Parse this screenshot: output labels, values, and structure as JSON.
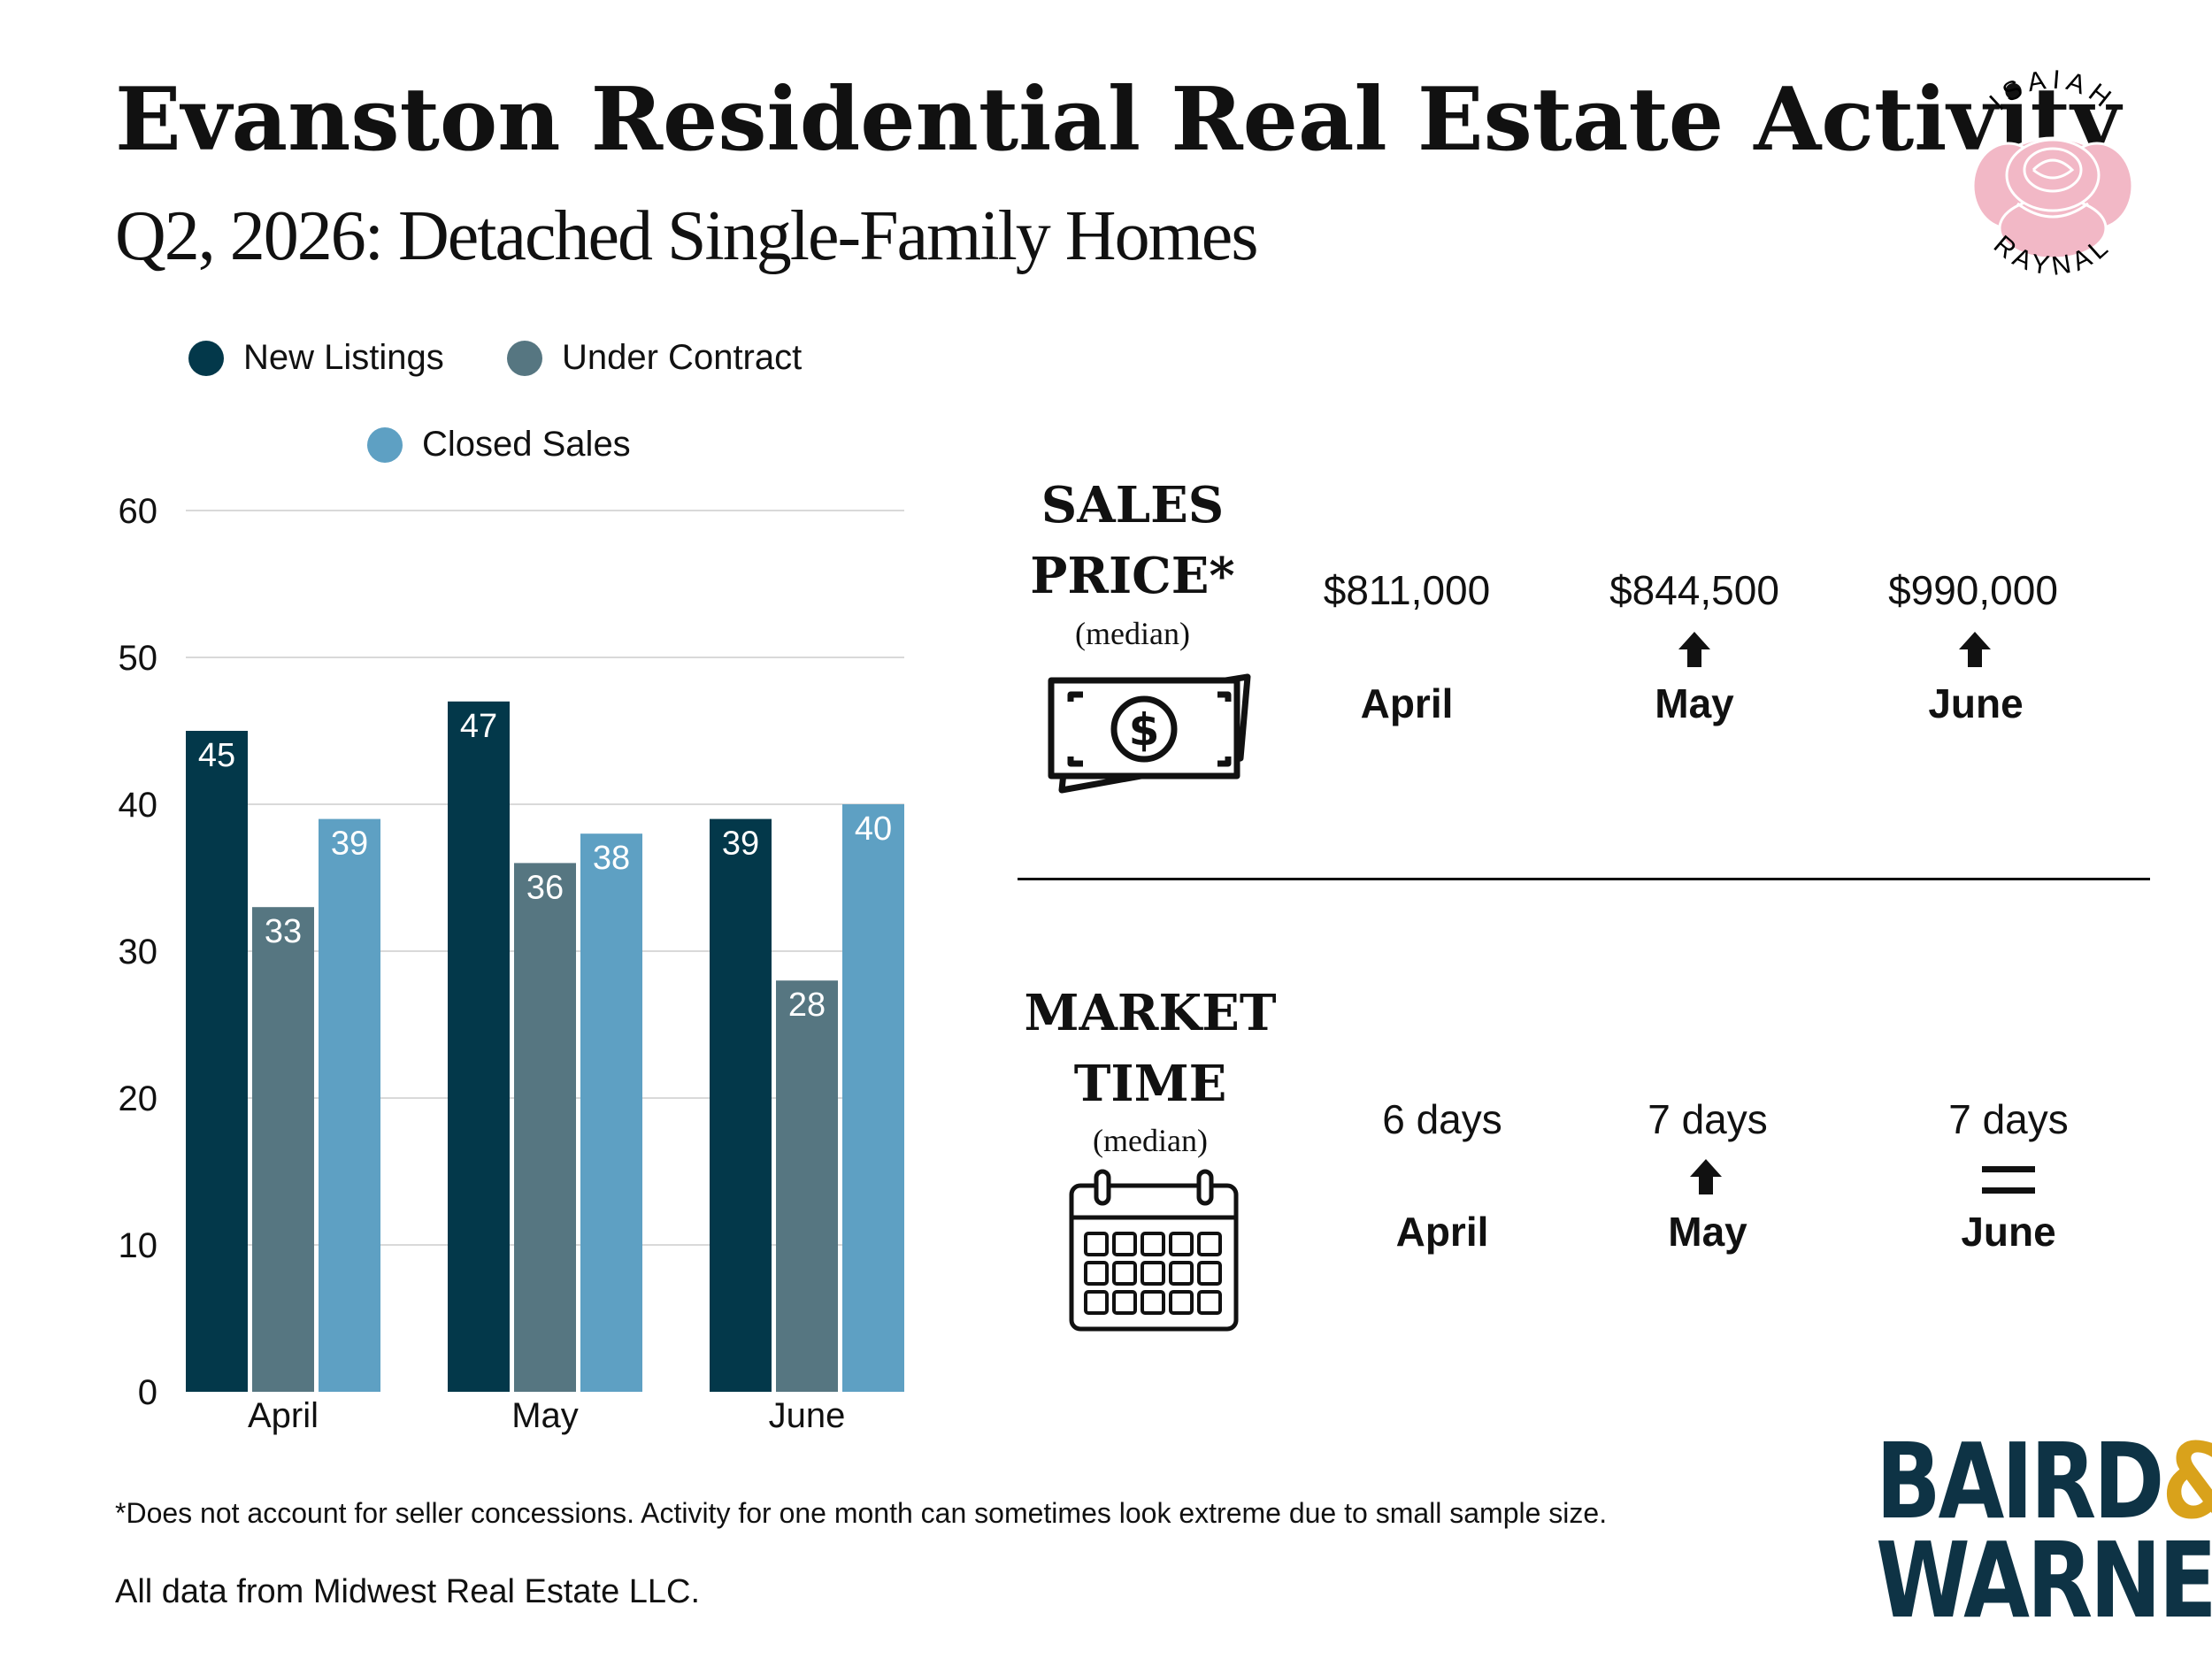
{
  "header": {
    "title": "Evanston Residential Real Estate Activity",
    "subtitle": "Q2, 2026: Detached Single-Family Homes"
  },
  "chart_data": {
    "type": "bar",
    "categories": [
      "April",
      "May",
      "June"
    ],
    "series": [
      {
        "name": "New Listings",
        "values": [
          45,
          47,
          39
        ],
        "color": "#03384a"
      },
      {
        "name": "Under Contract",
        "values": [
          33,
          36,
          28
        ],
        "color": "#567681"
      },
      {
        "name": "Closed Sales",
        "values": [
          39,
          38,
          40
        ],
        "color": "#5ea0c3"
      }
    ],
    "yticks": [
      "0",
      "10",
      "20",
      "30",
      "40",
      "50",
      "60"
    ],
    "ylim": [
      0,
      60
    ],
    "grid": true,
    "legend_position": "top-left",
    "data_labels": true
  },
  "sales_price": {
    "heading_line1": "SALES",
    "heading_line2": "PRICE*",
    "qualifier": "(median)",
    "icon": "cash-icon",
    "months": [
      {
        "value": "$811,000",
        "month": "April",
        "trend": "none"
      },
      {
        "value": "$844,500",
        "month": "May",
        "trend": "up"
      },
      {
        "value": "$990,000",
        "month": "June",
        "trend": "up"
      }
    ]
  },
  "market_time": {
    "heading_line1": "MARKET",
    "heading_line2": "TIME",
    "qualifier": "(median)",
    "icon": "calendar-icon",
    "months": [
      {
        "value": "6 days",
        "month": "April",
        "trend": "none"
      },
      {
        "value": "7 days",
        "month": "May",
        "trend": "up"
      },
      {
        "value": "7 days",
        "month": "June",
        "trend": "equal"
      }
    ]
  },
  "footer": {
    "footnote": "*Does not account for seller concessions. Activity for one month can sometimes look extreme due to small sample size.",
    "source": "All data from Midwest Real Estate LLC."
  },
  "logo": {
    "top_text": "ISAIAH",
    "bottom_text": "RAYNAL",
    "rose_color": "#f2b8c6"
  },
  "brand": {
    "line1": "BAIRD",
    "ampersand": "&",
    "line2": "WARNER",
    "color": "#0e3345",
    "accent": "#d9a21b"
  }
}
